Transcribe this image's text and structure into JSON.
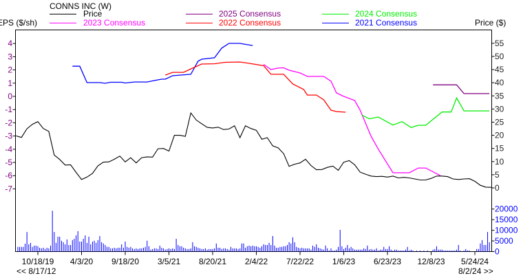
{
  "title": "CONNS INC (W)",
  "left_axis_label": "EPS ($/sh)",
  "right_axis_label": "Price ($)",
  "range_start_label": "<< 8/17/12",
  "range_end_label": "8/2/24 >>",
  "legend": [
    {
      "label": "Price",
      "color": "#000000"
    },
    {
      "label": "2023 Consensus",
      "color": "#ff00ff"
    },
    {
      "label": "2025 Consensus",
      "color": "#800080"
    },
    {
      "label": "2022 Consensus",
      "color": "#ff0000"
    },
    {
      "label": "2024 Consensus",
      "color": "#00ee00"
    },
    {
      "label": "2021 Consensus",
      "color": "#0000ff"
    }
  ],
  "chart_data": {
    "type": "line",
    "title": "CONNS INC (W)",
    "x_ticks": [
      "10/18/19",
      "4/3/20",
      "9/18/20",
      "3/5/21",
      "8/20/21",
      "2/4/22",
      "7/22/22",
      "1/6/23",
      "6/23/23",
      "12/8/23",
      "5/24/24"
    ],
    "x_tick_dates": [
      "2019-10-18",
      "2020-04-03",
      "2020-09-18",
      "2021-03-05",
      "2021-08-20",
      "2022-02-04",
      "2022-07-22",
      "2023-01-06",
      "2023-06-23",
      "2023-12-08",
      "2024-05-24"
    ],
    "xlim": [
      "2019-07-19",
      "2024-08-02"
    ],
    "left_axis": {
      "label": "EPS ($/sh)",
      "ylim": [
        -7,
        4
      ],
      "ticks": [
        4,
        3,
        2,
        1,
        0,
        -1,
        -2,
        -3,
        -4,
        -5,
        -6,
        -7
      ],
      "color": "#800080"
    },
    "right_axis": {
      "label": "Price ($)",
      "ylim": [
        0,
        55
      ],
      "ticks": [
        55,
        50,
        45,
        40,
        35,
        30,
        25,
        20,
        15,
        10,
        5,
        0
      ]
    },
    "volume_axis": {
      "ylim": [
        0,
        20000
      ],
      "ticks": [
        20000,
        15000,
        10000,
        5000,
        0
      ],
      "color": "#0000ff"
    },
    "grid": false,
    "price": {
      "name": "Price",
      "axis": "right",
      "color": "#000000",
      "dates": [
        "2019-07-26",
        "2019-08-16",
        "2019-09-06",
        "2019-09-27",
        "2019-10-18",
        "2019-11-08",
        "2019-11-29",
        "2019-12-20",
        "2020-01-10",
        "2020-01-31",
        "2020-02-21",
        "2020-03-13",
        "2020-04-03",
        "2020-04-24",
        "2020-05-15",
        "2020-06-05",
        "2020-06-26",
        "2020-07-17",
        "2020-08-07",
        "2020-08-28",
        "2020-09-18",
        "2020-10-09",
        "2020-10-30",
        "2020-11-20",
        "2020-12-11",
        "2021-01-01",
        "2021-01-22",
        "2021-02-12",
        "2021-03-05",
        "2021-03-26",
        "2021-04-16",
        "2021-05-07",
        "2021-05-28",
        "2021-06-18",
        "2021-07-09",
        "2021-07-30",
        "2021-08-20",
        "2021-09-10",
        "2021-10-01",
        "2021-10-22",
        "2021-11-12",
        "2021-12-03",
        "2021-12-24",
        "2022-01-14",
        "2022-02-04",
        "2022-02-25",
        "2022-03-18",
        "2022-04-08",
        "2022-04-29",
        "2022-05-20",
        "2022-06-10",
        "2022-07-01",
        "2022-07-22",
        "2022-08-12",
        "2022-09-02",
        "2022-09-23",
        "2022-10-14",
        "2022-11-04",
        "2022-11-25",
        "2022-12-16",
        "2023-01-06",
        "2023-01-27",
        "2023-02-17",
        "2023-03-10",
        "2023-03-31",
        "2023-04-21",
        "2023-05-12",
        "2023-06-02",
        "2023-06-23",
        "2023-07-14",
        "2023-08-04",
        "2023-08-25",
        "2023-09-15",
        "2023-10-06",
        "2023-10-27",
        "2023-11-17",
        "2023-12-08",
        "2023-12-29",
        "2024-01-19",
        "2024-02-09",
        "2024-03-01",
        "2024-03-22",
        "2024-04-12",
        "2024-05-03",
        "2024-05-24",
        "2024-06-14",
        "2024-07-05",
        "2024-07-26"
      ],
      "values": [
        19.8,
        19.2,
        22.5,
        24.2,
        25.2,
        22.6,
        21.5,
        12.5,
        10.8,
        8.7,
        8.8,
        5.9,
        3.2,
        4.1,
        5.5,
        8.4,
        9.8,
        9.9,
        10.9,
        12.1,
        9.9,
        11.5,
        9.5,
        11.5,
        11.8,
        11.7,
        14.9,
        15.0,
        14.0,
        20.0,
        20.0,
        19.6,
        28.5,
        25.8,
        24.4,
        23.0,
        22.8,
        23.1,
        22.2,
        22.4,
        23.6,
        19.1,
        23.6,
        22.6,
        21.9,
        18.5,
        19.1,
        16.0,
        15.2,
        13.0,
        8.2,
        9.0,
        9.5,
        10.9,
        8.5,
        6.9,
        7.0,
        7.8,
        8.3,
        6.7,
        9.8,
        10.4,
        8.8,
        6.0,
        5.2,
        4.5,
        4.3,
        4.4,
        4.1,
        4.5,
        3.8,
        4.0,
        3.8,
        3.4,
        3.0,
        3.0,
        3.6,
        4.5,
        4.5,
        4.3,
        3.4,
        3.2,
        3.4,
        3.5,
        2.5,
        1.0,
        0.3,
        0.2
      ]
    },
    "series": [
      {
        "name": "2021 Consensus",
        "axis": "left",
        "color": "#0000ff",
        "dates": [
          "2020-02-28",
          "2020-03-27",
          "2020-04-24",
          "2020-06-12",
          "2020-07-03",
          "2020-07-24",
          "2020-09-04",
          "2020-09-18",
          "2020-10-23",
          "2020-12-11",
          "2021-01-08",
          "2021-02-05",
          "2021-02-19",
          "2021-03-19",
          "2021-05-28",
          "2021-06-25",
          "2021-07-09",
          "2021-08-27",
          "2021-09-24",
          "2021-10-22",
          "2021-12-03",
          "2021-12-31",
          "2022-01-21"
        ],
        "values": [
          2.28,
          2.28,
          1.04,
          1.04,
          0.99,
          1.07,
          1.07,
          1.01,
          1.09,
          1.09,
          1.2,
          1.3,
          1.3,
          1.56,
          1.67,
          2.66,
          2.81,
          2.92,
          3.65,
          4.01,
          4.01,
          3.91,
          3.85
        ]
      },
      {
        "name": "2022 Consensus",
        "axis": "left",
        "color": "#ff0000",
        "dates": [
          "2021-02-19",
          "2021-03-19",
          "2021-04-30",
          "2021-05-28",
          "2021-07-09",
          "2021-08-27",
          "2021-10-08",
          "2021-12-03",
          "2022-01-07",
          "2022-03-04",
          "2022-04-01",
          "2022-05-20",
          "2022-06-24",
          "2022-08-05",
          "2022-08-19",
          "2022-09-23",
          "2022-10-21",
          "2022-11-18",
          "2022-12-09",
          "2023-01-13"
        ],
        "values": [
          1.61,
          1.82,
          1.82,
          2.08,
          2.45,
          2.47,
          2.58,
          2.6,
          2.5,
          2.32,
          1.67,
          1.67,
          0.94,
          0.52,
          0.1,
          0.1,
          -0.26,
          -1.04,
          -1.15,
          -1.2
        ]
      },
      {
        "name": "2023 Consensus",
        "axis": "left",
        "color": "#ff00ff",
        "dates": [
          "2022-03-04",
          "2022-04-01",
          "2022-04-29",
          "2022-05-20",
          "2022-06-10",
          "2022-07-22",
          "2022-08-19",
          "2022-10-21",
          "2022-11-18",
          "2022-12-09",
          "2023-01-06",
          "2023-02-17",
          "2023-03-10",
          "2023-04-21",
          "2023-05-19",
          "2023-07-14",
          "2023-09-15",
          "2023-10-20",
          "2023-11-17",
          "2024-01-12"
        ],
        "values": [
          2.42,
          2.03,
          2.14,
          2.16,
          1.98,
          1.77,
          1.51,
          1.51,
          1.15,
          0.26,
          0.0,
          -0.31,
          -1.04,
          -3.02,
          -4.0,
          -5.78,
          -5.78,
          -5.42,
          -5.42,
          -5.99
        ]
      },
      {
        "name": "2024 Consensus",
        "axis": "left",
        "color": "#00ee00",
        "dates": [
          "2023-03-17",
          "2023-04-14",
          "2023-05-19",
          "2023-07-14",
          "2023-08-18",
          "2023-09-22",
          "2023-10-20",
          "2023-11-17",
          "2023-12-15",
          "2024-01-19",
          "2024-02-23",
          "2024-03-15",
          "2024-04-12",
          "2024-07-19"
        ],
        "values": [
          -1.42,
          -1.7,
          -1.56,
          -2.17,
          -1.91,
          -2.36,
          -2.19,
          -2.19,
          -1.74,
          -1.18,
          -1.18,
          -0.12,
          -1.1,
          -1.1
        ]
      },
      {
        "name": "2025 Consensus",
        "axis": "left",
        "color": "#800080",
        "dates": [
          "2023-12-15",
          "2024-03-15",
          "2024-04-12",
          "2024-07-19"
        ],
        "values": [
          0.87,
          0.87,
          0.21,
          0.21
        ]
      }
    ],
    "volume": {
      "type": "bar",
      "axis": "volume",
      "color": "#0000ff",
      "interval": "weekly",
      "first_date": "2019-08-02",
      "values": [
        2200,
        2200,
        2200,
        2200,
        3700,
        9200,
        3400,
        4100,
        2200,
        2800,
        2800,
        2500,
        1800,
        1500,
        1800,
        1200,
        1800,
        1500,
        2800,
        19200,
        9200,
        4100,
        7000,
        7000,
        5100,
        4400,
        3400,
        5700,
        3100,
        3100,
        5400,
        6000,
        7600,
        9600,
        4700,
        4700,
        6000,
        7600,
        4100,
        7000,
        3400,
        4700,
        5100,
        4100,
        5400,
        7300,
        4400,
        3800,
        3100,
        2200,
        2200,
        1500,
        1500,
        1800,
        1500,
        1800,
        1800,
        3400,
        1800,
        4700,
        2200,
        1800,
        2200,
        1500,
        1200,
        1500,
        1200,
        1500,
        1500,
        1800,
        2200,
        5100,
        2500,
        900,
        1200,
        1500,
        1500,
        1200,
        2800,
        1800,
        1500,
        900,
        1200,
        1500,
        1200,
        1500,
        1200,
        6000,
        3100,
        2500,
        2500,
        1800,
        1500,
        1200,
        1200,
        1500,
        4400,
        2500,
        2200,
        1800,
        1500,
        1200,
        1200,
        1500,
        900,
        1200,
        1200,
        1200,
        1500,
        3800,
        1800,
        1800,
        1200,
        1500,
        1500,
        1200,
        900,
        2200,
        1500,
        1500,
        1500,
        1200,
        1500,
        3800,
        3800,
        1800,
        2500,
        2800,
        2500,
        2800,
        2500,
        2500,
        2200,
        1800,
        2500,
        3400,
        3100,
        3100,
        4100,
        3100,
        7300,
        2800,
        1800,
        1800,
        2200,
        2200,
        2500,
        2500,
        3100,
        4400,
        3800,
        6700,
        4400,
        2200,
        1800,
        1500,
        1800,
        1500,
        1500,
        1500,
        1500,
        900,
        2800,
        2200,
        3400,
        1800,
        1500,
        1200,
        900,
        2800,
        1500,
        500,
        1500,
        500,
        500,
        900,
        2200,
        10200,
        2500,
        1200,
        1800,
        3100,
        1500,
        2200,
        1500,
        900,
        900,
        900,
        900,
        900,
        1500,
        1200,
        2800,
        900,
        1200,
        900,
        900,
        1500,
        500,
        900,
        900,
        2200,
        1200,
        1200,
        2500,
        900,
        500,
        900,
        900,
        500,
        500,
        500,
        500,
        900,
        2200,
        500,
        900,
        500,
        0,
        500,
        0,
        500,
        0,
        500,
        0,
        500,
        0,
        0,
        900,
        1200,
        2500,
        900,
        900,
        900,
        500,
        500,
        500,
        500,
        500,
        500,
        500,
        900,
        3100,
        500,
        0,
        500,
        1200,
        500,
        500,
        0,
        0,
        0,
        1200,
        1200,
        3800,
        5400,
        3100,
        3100,
        9200,
        4400
      ]
    }
  }
}
